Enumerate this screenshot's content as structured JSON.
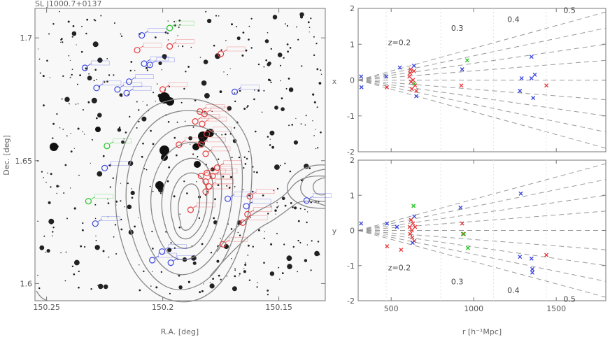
{
  "chart_data": [
    {
      "type": "scatter",
      "title": "SL J1000.7+0137",
      "xlabel": "R.A. [deg]",
      "ylabel": "Dec. [deg]",
      "xlim": [
        150.255,
        150.13
      ],
      "ylim": [
        1.593,
        1.712
      ],
      "xticks": [
        "150.25",
        "150.2",
        "150.15"
      ],
      "yticks": [
        "1.6",
        "1.65",
        "1.7"
      ],
      "colors": {
        "red": "#e8393a",
        "blue": "#3a46e0",
        "green": "#22c422",
        "contour": "#888888"
      },
      "series": [
        {
          "color": "red",
          "points": [
            [
              150.197,
              1.6965
            ],
            [
              150.175,
              1.6935
            ],
            [
              150.211,
              1.695
            ],
            [
              150.2,
              1.679
            ],
            [
              150.184,
              1.67
            ],
            [
              150.182,
              1.669
            ],
            [
              150.186,
              1.666
            ],
            [
              150.183,
              1.665
            ],
            [
              150.181,
              1.6608
            ],
            [
              150.193,
              1.6565
            ],
            [
              150.1835,
              1.6565
            ],
            [
              150.1815,
              1.6528
            ],
            [
              150.1765,
              1.6472
            ],
            [
              150.1785,
              1.6438
            ],
            [
              150.181,
              1.645
            ],
            [
              150.1835,
              1.6438
            ],
            [
              150.1815,
              1.6415
            ],
            [
              150.18,
              1.6395
            ],
            [
              150.1815,
              1.6374
            ],
            [
              150.1625,
              1.6355
            ],
            [
              150.188,
              1.63
            ],
            [
              150.1635,
              1.6282
            ],
            [
              150.1655,
              1.6248
            ],
            [
              150.174,
              1.616
            ]
          ]
        },
        {
          "color": "blue",
          "points": [
            [
              150.209,
              1.701
            ],
            [
              150.2055,
              1.689
            ],
            [
              150.208,
              1.6895
            ],
            [
              150.2335,
              1.6878
            ],
            [
              150.2145,
              1.6822
            ],
            [
              150.2195,
              1.679
            ],
            [
              150.2155,
              1.6775
            ],
            [
              150.2285,
              1.6796
            ],
            [
              150.169,
              1.678
            ],
            [
              150.225,
              1.647
            ],
            [
              150.138,
              1.6338
            ],
            [
              150.172,
              1.6345
            ],
            [
              150.164,
              1.6315
            ],
            [
              150.229,
              1.6244
            ],
            [
              150.2003,
              1.613
            ],
            [
              150.2045,
              1.6095
            ],
            [
              150.1965,
              1.6085
            ]
          ]
        },
        {
          "color": "green",
          "points": [
            [
              150.197,
              1.704
            ],
            [
              150.224,
              1.656
            ],
            [
              150.232,
              1.6335
            ]
          ]
        }
      ]
    },
    {
      "type": "scatter",
      "xlabel": "",
      "ylabel": "x",
      "xlim": [
        300,
        1800
      ],
      "ylim": [
        -2,
        2
      ],
      "yticks": [
        "-2",
        "-1",
        "0",
        "1",
        "2"
      ],
      "cone_labels": [
        "z=0.2",
        "0.3",
        "0.4",
        "0.5"
      ],
      "series": [
        {
          "color": "red",
          "points": [
            [
              474,
              -0.2
            ],
            [
              610,
              0.1
            ],
            [
              615,
              0.2
            ],
            [
              618,
              0.3
            ],
            [
              620,
              -0.05
            ],
            [
              625,
              -0.25
            ],
            [
              632,
              0.0
            ],
            [
              638,
              0.25
            ],
            [
              645,
              -0.15
            ],
            [
              652,
              -0.3
            ],
            [
              925,
              -0.15
            ],
            [
              1440,
              -0.15
            ]
          ]
        },
        {
          "color": "blue",
          "points": [
            [
              318,
              0.1
            ],
            [
              320,
              -0.2
            ],
            [
              470,
              0.1
            ],
            [
              552,
              0.35
            ],
            [
              638,
              0.4
            ],
            [
              652,
              -0.45
            ],
            [
              930,
              0.3
            ],
            [
              1280,
              -0.3
            ],
            [
              1290,
              0.05
            ],
            [
              1350,
              0.05
            ],
            [
              1350,
              0.65
            ],
            [
              1360,
              -0.5
            ],
            [
              1370,
              0.15
            ]
          ]
        },
        {
          "color": "green",
          "points": [
            [
              640,
              -0.1
            ],
            [
              960,
              0.55
            ]
          ]
        }
      ]
    },
    {
      "type": "scatter",
      "xlabel": "r [h⁻¹Mpc]",
      "ylabel": "y",
      "xlim": [
        300,
        1800
      ],
      "ylim": [
        -2,
        2
      ],
      "xticks": [
        "500",
        "1000",
        "1500"
      ],
      "yticks": [
        "-2",
        "-1",
        "0",
        "1",
        "2"
      ],
      "cone_labels": [
        "z=0.2",
        "0.3",
        "0.4",
        "0.5"
      ],
      "series": [
        {
          "color": "red",
          "points": [
            [
              475,
              -0.45
            ],
            [
              560,
              -0.55
            ],
            [
              612,
              0.1
            ],
            [
              615,
              -0.1
            ],
            [
              620,
              0.3
            ],
            [
              625,
              0.0
            ],
            [
              628,
              -0.2
            ],
            [
              632,
              0.2
            ],
            [
              640,
              -0.3
            ],
            [
              645,
              0.1
            ],
            [
              930,
              0.2
            ],
            [
              935,
              -0.1
            ],
            [
              1440,
              -0.7
            ]
          ]
        },
        {
          "color": "blue",
          "points": [
            [
              318,
              0.2
            ],
            [
              475,
              0.2
            ],
            [
              535,
              0.1
            ],
            [
              630,
              -0.35
            ],
            [
              640,
              0.4
            ],
            [
              920,
              0.65
            ],
            [
              1280,
              -0.75
            ],
            [
              1285,
              1.05
            ],
            [
              1350,
              -0.8
            ],
            [
              1355,
              -1.1
            ],
            [
              1355,
              -1.2
            ]
          ]
        },
        {
          "color": "green",
          "points": [
            [
              635,
              0.7
            ],
            [
              940,
              -0.1
            ],
            [
              965,
              -0.5
            ]
          ]
        }
      ]
    }
  ]
}
